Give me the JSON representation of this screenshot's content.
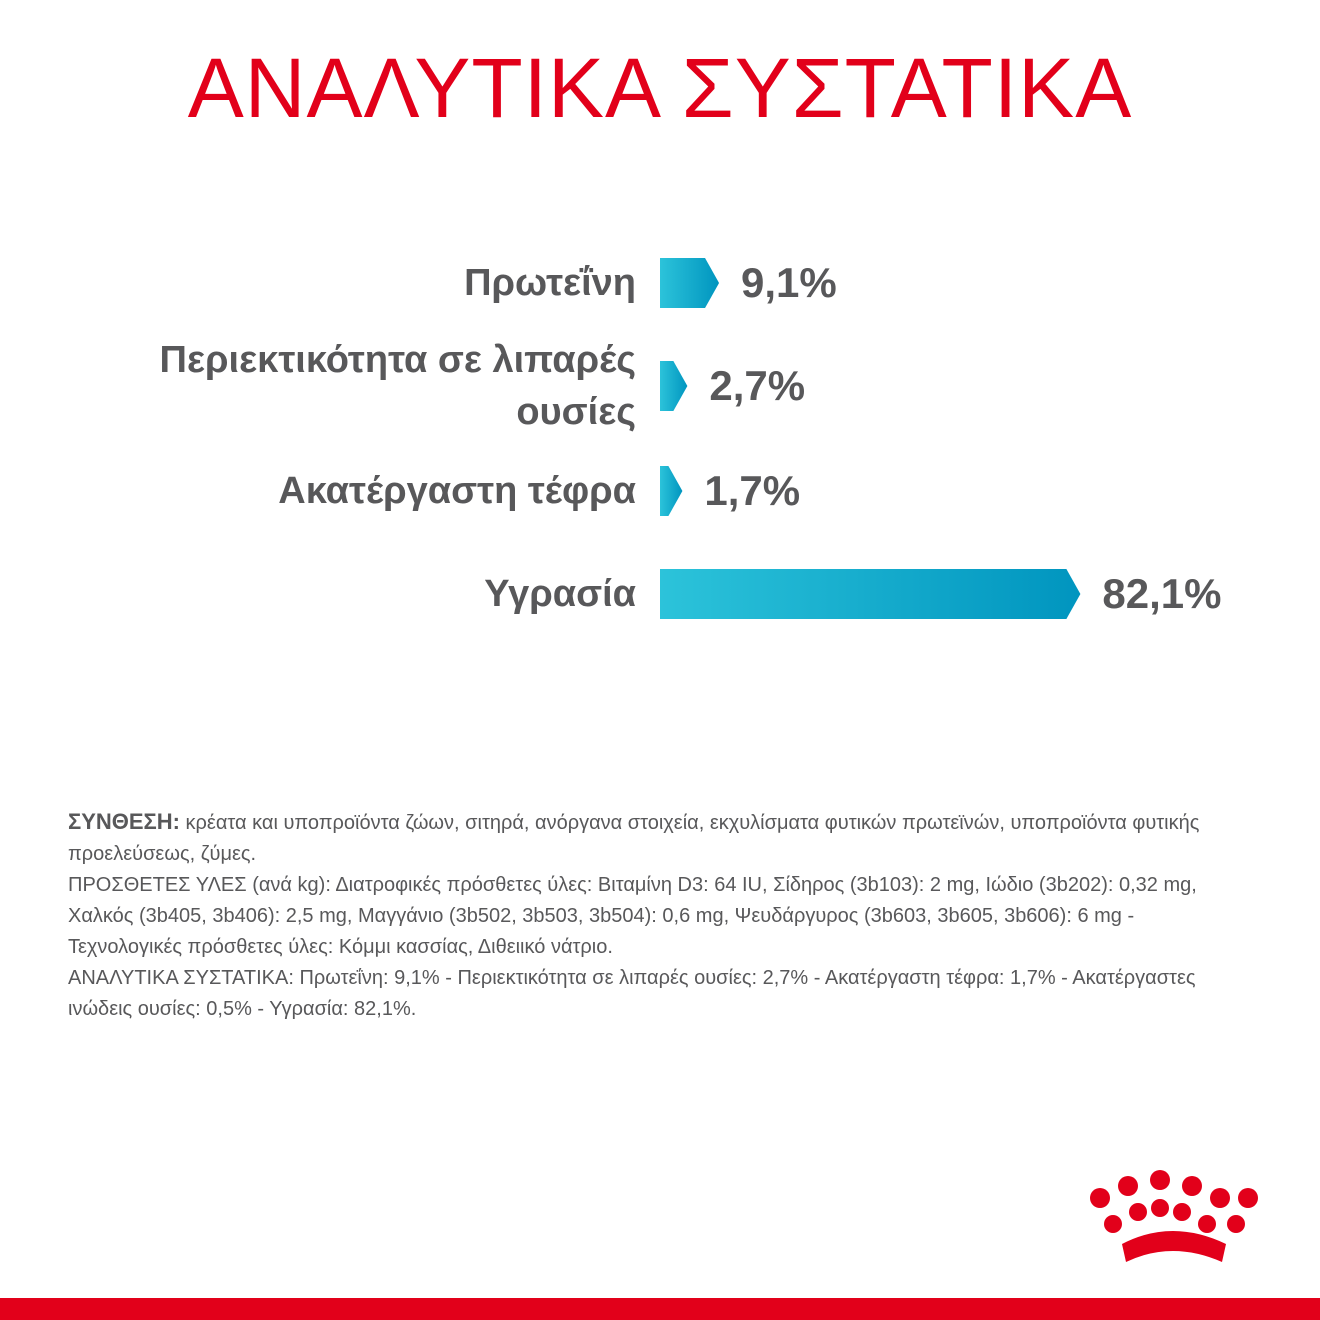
{
  "chart_data": {
    "type": "bar",
    "title": "ΑΝΑΛΥΤΙΚΑ ΣΥΣΤΑΤΙΚΑ",
    "categories": [
      "Πρωτεΐνη",
      "Περιεκτικότητα σε λιπαρές ουσίες",
      "Ακατέργαστη τέφρα",
      "Υγρασία"
    ],
    "values": [
      9.1,
      2.7,
      1.7,
      82.1
    ],
    "value_labels": [
      "9,1%",
      "2,7%",
      "1,7%",
      "82,1%"
    ],
    "color": [
      "#2cc3da",
      "#0095bf"
    ]
  },
  "composition": {
    "label": "ΣΥΝΘΕΣΗ:",
    "text": "κρέατα και υποπροϊόντα ζώων, σιτηρά, ανόργανα στοιχεία, εκχυλίσματα φυτικών πρωτεϊνών, υποπροϊόντα φυτικής προελεύσεως, ζύμες.",
    "additives": "ΠΡΟΣΘΕΤΕΣ ΥΛΕΣ (ανά kg): Διατροφικές πρόσθετες ύλες: Βιταμίνη D3: 64 IU, Σίδηρος (3b103): 2 mg, Ιώδιο (3b202): 0,32 mg, Χαλκός (3b405, 3b406): 2,5 mg, Μαγγάνιο (3b502, 3b503, 3b504): 0,6 mg, Ψευδάργυρος (3b603, 3b605, 3b606): 6 mg - Τεχνολογικές πρόσθετες ύλες: Κόμμι κασσίας, Διθειικό νάτριο.",
    "analysis": "ΑΝΑΛΥΤΙΚΑ ΣΥΣΤΑΤΙΚΑ: Πρωτεΐνη: 9,1% - Περιεκτικότητα σε λιπαρές ουσίες: 2,7% - Ακατέργαστη τέφρα: 1,7% - Ακατέργαστες ινώδεις ουσίες: 0,5% - Υγρασία: 82,1%."
  }
}
